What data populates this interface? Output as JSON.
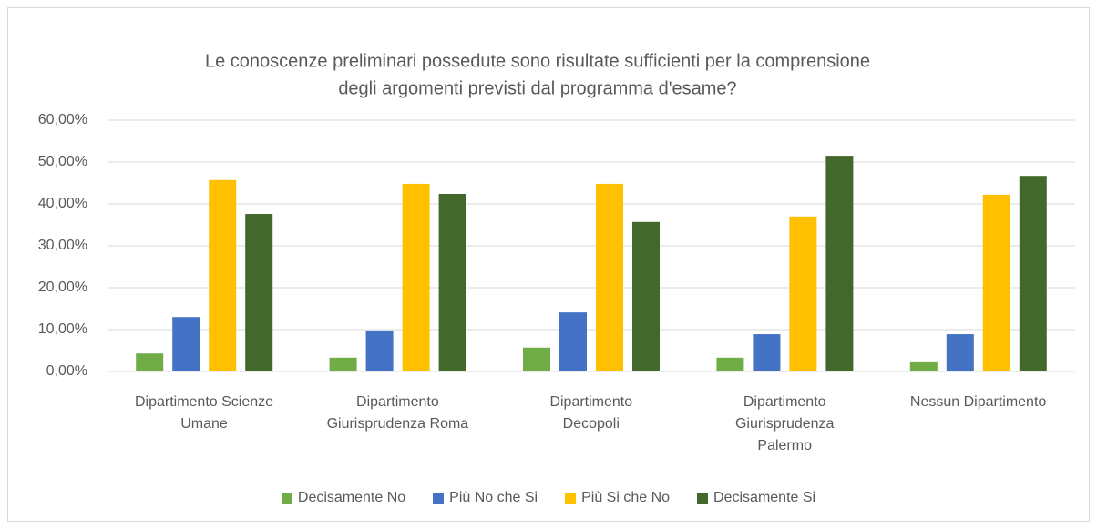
{
  "chart_data": {
    "type": "bar",
    "title": [
      "Le conoscenze preliminari possedute sono risultate sufficienti per la comprensione",
      "degli argomenti previsti dal programma d'esame?"
    ],
    "categories": [
      "Dipartimento Scienze\nUmane",
      "Dipartimento\nGiurisprudenza Roma",
      "Dipartimento\nDecopoli",
      "Dipartimento\nGiurisprudenza\nPalermo",
      "Nessun Dipartimento"
    ],
    "series": [
      {
        "name": "Decisamente No",
        "color": "#70ad47",
        "values": [
          4.3,
          3.3,
          5.7,
          3.3,
          2.2
        ]
      },
      {
        "name": "Più No che Si",
        "color": "#4472c4",
        "values": [
          13.0,
          9.8,
          14.1,
          8.9,
          8.9
        ]
      },
      {
        "name": "Più Si che No",
        "color": "#ffc000",
        "values": [
          45.7,
          44.8,
          44.8,
          37.0,
          42.2
        ]
      },
      {
        "name": "Decisamente Si",
        "color": "#43682b",
        "values": [
          37.6,
          42.4,
          35.7,
          51.5,
          46.7
        ]
      }
    ],
    "ylim": [
      0,
      60
    ],
    "yticks": [
      {
        "value": 0,
        "label": "0,00%"
      },
      {
        "value": 10,
        "label": "10,00%"
      },
      {
        "value": 20,
        "label": "20,00%"
      },
      {
        "value": 30,
        "label": "30,00%"
      },
      {
        "value": 40,
        "label": "40,00%"
      },
      {
        "value": 50,
        "label": "50,00%"
      },
      {
        "value": 60,
        "label": "60,00%"
      }
    ],
    "grid": true,
    "legend": "bottom"
  }
}
